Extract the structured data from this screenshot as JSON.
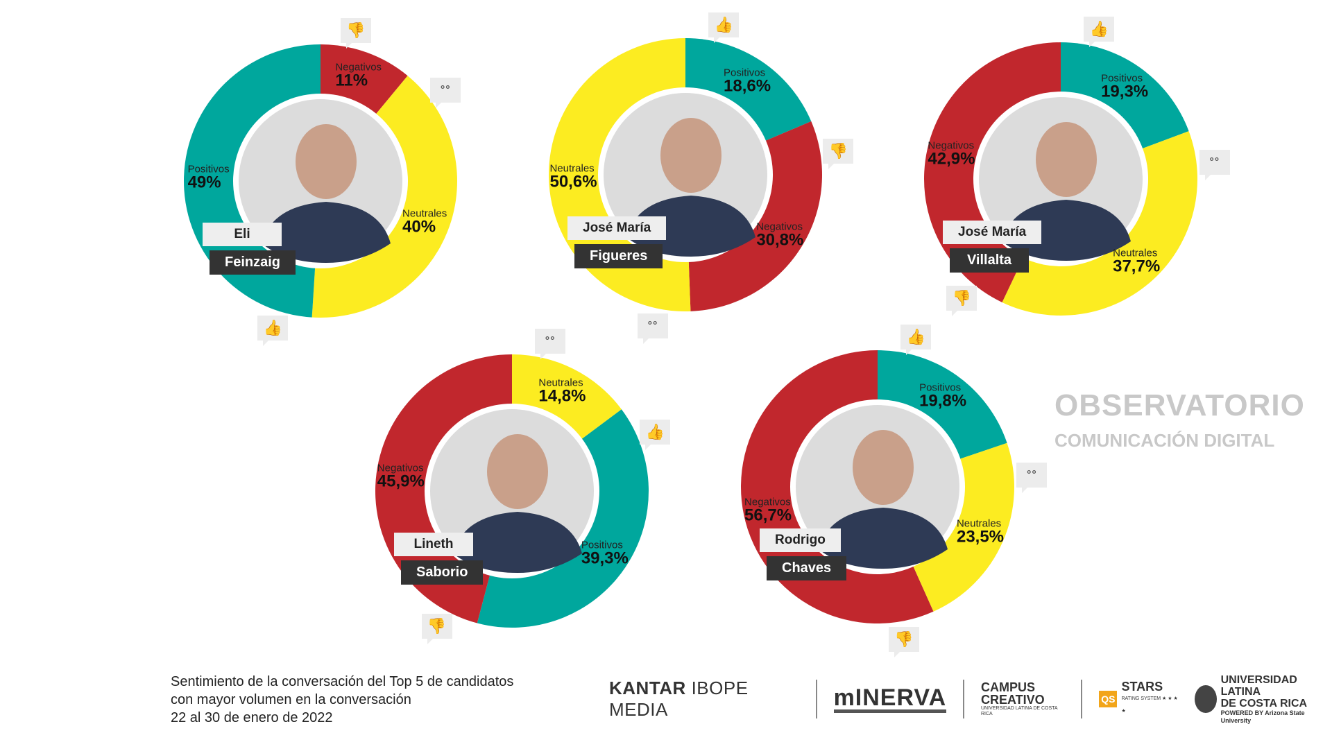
{
  "watermark": {
    "line1": "OBSERVATORIO",
    "line2": "COMUNICACIÓN DIGITAL"
  },
  "colors": {
    "Positivos": "#00A79D",
    "Negativos": "#C1272D",
    "Neutrales": "#FCEC21"
  },
  "chart_data": {
    "type": "pie",
    "subtype": "donut",
    "title": "Sentimiento de la conversación del Top 5 de candidatos con mayor volumen en la conversación",
    "charts": [
      {
        "first": "Eli",
        "last": "Feinzaig",
        "segments": [
          {
            "name": "Negativos",
            "value": 11,
            "label": "11%"
          },
          {
            "name": "Neutrales",
            "value": 40,
            "label": "40%"
          },
          {
            "name": "Positivos",
            "value": 49,
            "label": "49%"
          }
        ]
      },
      {
        "first": "José María",
        "last": "Figueres",
        "segments": [
          {
            "name": "Positivos",
            "value": 18.6,
            "label": "18,6%"
          },
          {
            "name": "Negativos",
            "value": 30.8,
            "label": "30,8%"
          },
          {
            "name": "Neutrales",
            "value": 50.6,
            "label": "50,6%"
          }
        ]
      },
      {
        "first": "José María",
        "last": "Villalta",
        "segments": [
          {
            "name": "Positivos",
            "value": 19.3,
            "label": "19,3%"
          },
          {
            "name": "Neutrales",
            "value": 37.7,
            "label": "37,7%"
          },
          {
            "name": "Negativos",
            "value": 42.9,
            "label": "42,9%"
          }
        ]
      },
      {
        "first": "Lineth",
        "last": "Saborio",
        "segments": [
          {
            "name": "Neutrales",
            "value": 14.8,
            "label": "14,8%"
          },
          {
            "name": "Positivos",
            "value": 39.3,
            "label": "39,3%"
          },
          {
            "name": "Negativos",
            "value": 45.9,
            "label": "45,9%"
          }
        ]
      },
      {
        "first": "Rodrigo",
        "last": "Chaves",
        "segments": [
          {
            "name": "Positivos",
            "value": 19.8,
            "label": "19,8%"
          },
          {
            "name": "Neutrales",
            "value": 23.5,
            "label": "23,5%"
          },
          {
            "name": "Negativos",
            "value": 56.7,
            "label": "56,7%"
          }
        ]
      }
    ]
  },
  "footer": {
    "line1": "Sentimiento de la conversación del Top 5 de candidatos",
    "line2": "con mayor volumen en la conversación",
    "line3": "22 al 30 de enero de 2022"
  },
  "logos": {
    "kantar_bold": "KANTAR",
    "kantar_rest": " IBOPE MEDIA",
    "minerva": "mINERVA",
    "campus": "CAMPUS",
    "creativo": "CREATIVO",
    "campus_sub": "UNIVERSIDAD LATINA DE COSTA RICA",
    "qs": "QS",
    "stars": "STARS",
    "stars_sub": "RATING SYSTEM ★ ★ ★ ★",
    "ula1": "UNIVERSIDAD LATINA",
    "ula2": "DE COSTA RICA",
    "ula_sub": "POWERED BY Arizona State University"
  }
}
